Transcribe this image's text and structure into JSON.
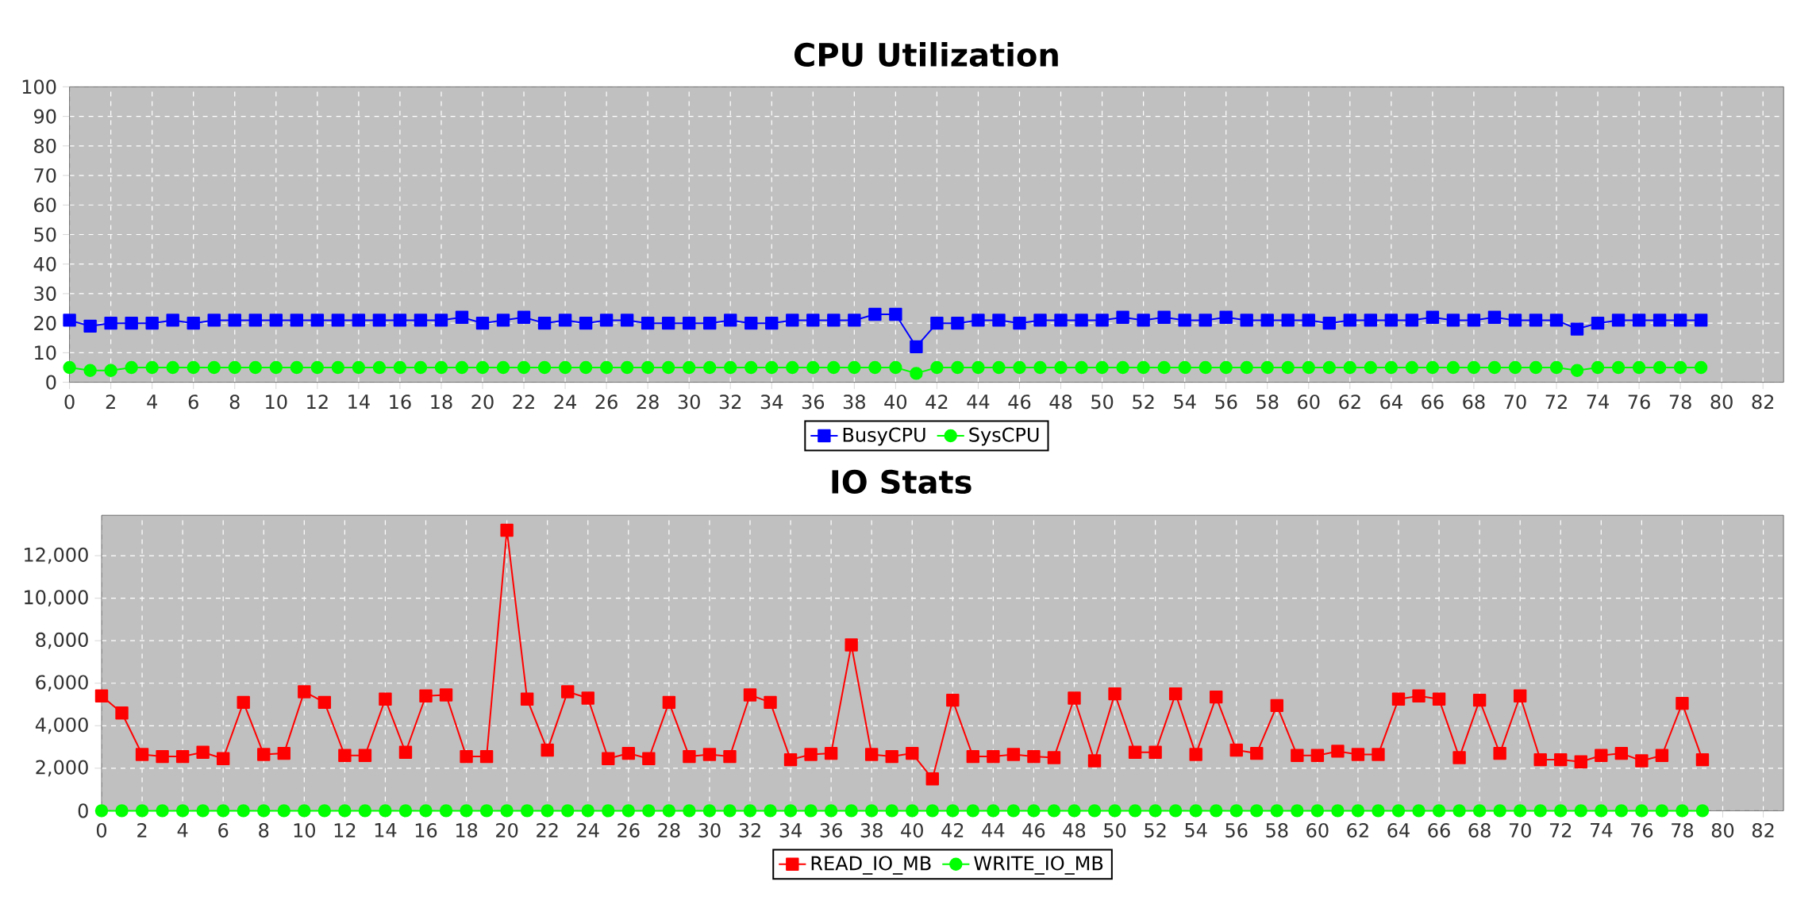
{
  "chart_data": [
    {
      "type": "line",
      "title": "CPU Utilization",
      "x": [
        0,
        1,
        2,
        3,
        4,
        5,
        6,
        7,
        8,
        9,
        10,
        11,
        12,
        13,
        14,
        15,
        16,
        17,
        18,
        19,
        20,
        21,
        22,
        23,
        24,
        25,
        26,
        27,
        28,
        29,
        30,
        31,
        32,
        33,
        34,
        35,
        36,
        37,
        38,
        39,
        40,
        41,
        42,
        43,
        44,
        45,
        46,
        47,
        48,
        49,
        50,
        51,
        52,
        53,
        54,
        55,
        56,
        57,
        58,
        59,
        60,
        61,
        62,
        63,
        64,
        65,
        66,
        67,
        68,
        69,
        70,
        71,
        72,
        73,
        74,
        75,
        76,
        77,
        78,
        79
      ],
      "series": [
        {
          "name": "BusyCPU",
          "color": "#0000ff",
          "marker": "square",
          "values": [
            21,
            19,
            20,
            20,
            20,
            21,
            20,
            21,
            21,
            21,
            21,
            21,
            21,
            21,
            21,
            21,
            21,
            21,
            21,
            22,
            20,
            21,
            22,
            20,
            21,
            20,
            21,
            21,
            20,
            20,
            20,
            20,
            21,
            20,
            20,
            21,
            21,
            21,
            21,
            23,
            23,
            12,
            20,
            20,
            21,
            21,
            20,
            21,
            21,
            21,
            21,
            22,
            21,
            22,
            21,
            21,
            22,
            21,
            21,
            21,
            21,
            20,
            21,
            21,
            21,
            21,
            22,
            21,
            21,
            22,
            21,
            21,
            21,
            18,
            20,
            21,
            21,
            21,
            21,
            21
          ]
        },
        {
          "name": "SysCPU",
          "color": "#00ff00",
          "marker": "circle",
          "values": [
            5,
            4,
            4,
            5,
            5,
            5,
            5,
            5,
            5,
            5,
            5,
            5,
            5,
            5,
            5,
            5,
            5,
            5,
            5,
            5,
            5,
            5,
            5,
            5,
            5,
            5,
            5,
            5,
            5,
            5,
            5,
            5,
            5,
            5,
            5,
            5,
            5,
            5,
            5,
            5,
            5,
            3,
            5,
            5,
            5,
            5,
            5,
            5,
            5,
            5,
            5,
            5,
            5,
            5,
            5,
            5,
            5,
            5,
            5,
            5,
            5,
            5,
            5,
            5,
            5,
            5,
            5,
            5,
            5,
            5,
            5,
            5,
            5,
            4,
            5,
            5,
            5,
            5,
            5,
            5
          ]
        }
      ],
      "xlim": [
        0,
        83
      ],
      "xticks": [
        0,
        2,
        4,
        6,
        8,
        10,
        12,
        14,
        16,
        18,
        20,
        22,
        24,
        26,
        28,
        30,
        32,
        34,
        36,
        38,
        40,
        42,
        44,
        46,
        48,
        50,
        52,
        54,
        56,
        58,
        60,
        62,
        64,
        66,
        68,
        70,
        72,
        74,
        76,
        78,
        80,
        82
      ],
      "ylim": [
        0,
        100
      ],
      "yticks": [
        0,
        10,
        20,
        30,
        40,
        50,
        60,
        70,
        80,
        90,
        100
      ],
      "grid": true,
      "legend": "bottom"
    },
    {
      "type": "line",
      "title": "IO Stats",
      "x": [
        0,
        1,
        2,
        3,
        4,
        5,
        6,
        7,
        8,
        9,
        10,
        11,
        12,
        13,
        14,
        15,
        16,
        17,
        18,
        19,
        20,
        21,
        22,
        23,
        24,
        25,
        26,
        27,
        28,
        29,
        30,
        31,
        32,
        33,
        34,
        35,
        36,
        37,
        38,
        39,
        40,
        41,
        42,
        43,
        44,
        45,
        46,
        47,
        48,
        49,
        50,
        51,
        52,
        53,
        54,
        55,
        56,
        57,
        58,
        59,
        60,
        61,
        62,
        63,
        64,
        65,
        66,
        67,
        68,
        69,
        70,
        71,
        72,
        73,
        74,
        75,
        76,
        77,
        78,
        79
      ],
      "series": [
        {
          "name": "READ_IO_MB",
          "color": "#ff0000",
          "marker": "square",
          "values": [
            5400,
            4600,
            2650,
            2550,
            2550,
            2750,
            2450,
            5100,
            2650,
            2700,
            5600,
            5100,
            2600,
            2600,
            5250,
            2750,
            5400,
            5450,
            2550,
            2550,
            13200,
            5250,
            2850,
            5600,
            5300,
            2450,
            2700,
            2450,
            5100,
            2550,
            2650,
            2550,
            5450,
            5100,
            2400,
            2650,
            2700,
            7800,
            2650,
            2550,
            2700,
            1500,
            5200,
            2550,
            2550,
            2650,
            2550,
            2500,
            5300,
            2350,
            5500,
            2750,
            2750,
            5500,
            2650,
            5350,
            2850,
            2700,
            4950,
            2600,
            2600,
            2800,
            2650,
            2650,
            5250,
            5400,
            5250,
            2500,
            5200,
            2700,
            5400,
            2400,
            2400,
            2300,
            2600,
            2700,
            2350,
            2600,
            5050,
            2400
          ]
        },
        {
          "name": "WRITE_IO_MB",
          "color": "#00ff00",
          "marker": "circle",
          "values": [
            0,
            0,
            0,
            0,
            0,
            0,
            0,
            0,
            0,
            0,
            0,
            0,
            0,
            0,
            0,
            0,
            0,
            0,
            0,
            0,
            0,
            0,
            0,
            0,
            0,
            0,
            0,
            0,
            0,
            0,
            0,
            0,
            0,
            0,
            0,
            0,
            0,
            0,
            0,
            0,
            0,
            0,
            0,
            0,
            0,
            0,
            0,
            0,
            0,
            0,
            0,
            0,
            0,
            0,
            0,
            0,
            0,
            0,
            0,
            0,
            0,
            0,
            0,
            0,
            0,
            0,
            0,
            0,
            0,
            0,
            0,
            0,
            0,
            0,
            0,
            0,
            0,
            0,
            0,
            0
          ]
        }
      ],
      "xlim": [
        0,
        83
      ],
      "xticks": [
        0,
        2,
        4,
        6,
        8,
        10,
        12,
        14,
        16,
        18,
        20,
        22,
        24,
        26,
        28,
        30,
        32,
        34,
        36,
        38,
        40,
        42,
        44,
        46,
        48,
        50,
        52,
        54,
        56,
        58,
        60,
        62,
        64,
        66,
        68,
        70,
        72,
        74,
        76,
        78,
        80,
        82
      ],
      "ylim": [
        0,
        13900
      ],
      "yticks": [
        0,
        {
          "value": 2000,
          "label": "2,000"
        },
        {
          "value": 4000,
          "label": "4,000"
        },
        {
          "value": 6000,
          "label": "6,000"
        },
        {
          "value": 8000,
          "label": "8,000"
        },
        {
          "value": 10000,
          "label": "10,000"
        },
        {
          "value": 12000,
          "label": "12,000"
        }
      ],
      "grid": true,
      "legend": "bottom"
    }
  ]
}
